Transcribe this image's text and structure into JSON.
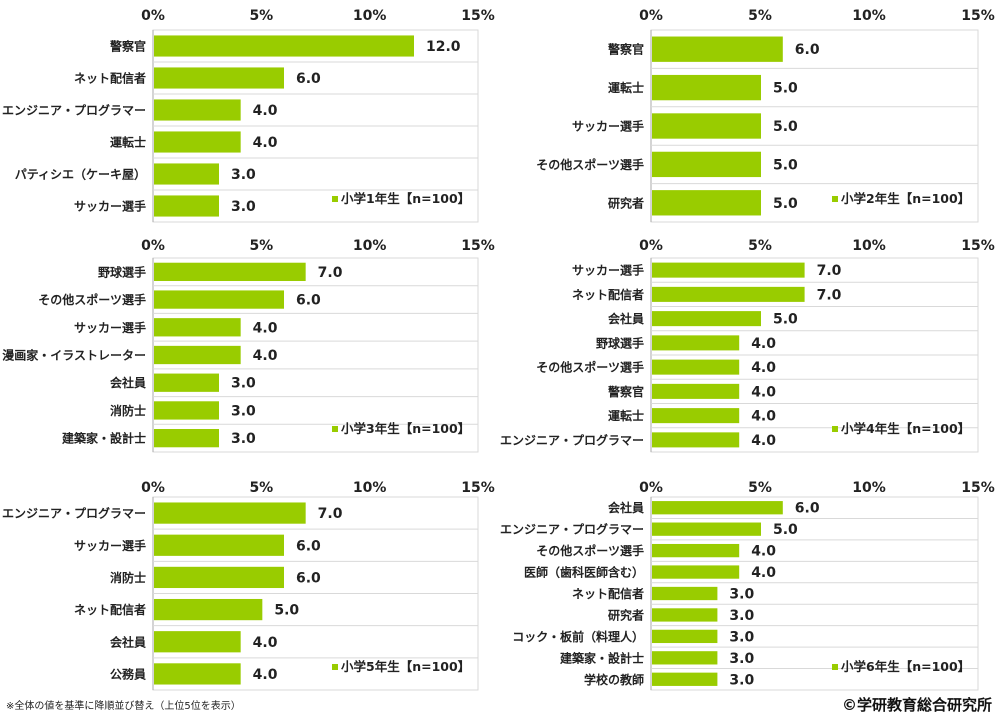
{
  "colors": {
    "bar": "#99cc00",
    "grid": "#d9d9d9",
    "text": "#222222"
  },
  "chart_data": [
    {
      "type": "bar",
      "orientation": "horizontal",
      "legend": "小学1年生【n=100】",
      "legend_position": "bottom-right",
      "xlim": [
        0,
        15
      ],
      "ticks": [
        "0%",
        "5%",
        "10%",
        "15%"
      ],
      "categories": [
        "警察官",
        "ネット配信者",
        "エンジニア・プログラマー",
        "運転士",
        "パティシエ（ケーキ屋）",
        "サッカー選手"
      ],
      "values": [
        12.0,
        6.0,
        4.0,
        4.0,
        3.0,
        3.0
      ],
      "labels": [
        "12.0",
        "6.0",
        "4.0",
        "4.0",
        "3.0",
        "3.0"
      ]
    },
    {
      "type": "bar",
      "orientation": "horizontal",
      "legend": "小学2年生【n=100】",
      "legend_position": "bottom-right",
      "xlim": [
        0,
        15
      ],
      "ticks": [
        "0%",
        "5%",
        "10%",
        "15%"
      ],
      "categories": [
        "警察官",
        "運転士",
        "サッカー選手",
        "その他スポーツ選手",
        "研究者"
      ],
      "values": [
        6.0,
        5.0,
        5.0,
        5.0,
        5.0
      ],
      "labels": [
        "6.0",
        "5.0",
        "5.0",
        "5.0",
        "5.0"
      ]
    },
    {
      "type": "bar",
      "orientation": "horizontal",
      "legend": "小学3年生【n=100】",
      "legend_position": "bottom-right",
      "xlim": [
        0,
        15
      ],
      "ticks": [
        "0%",
        "5%",
        "10%",
        "15%"
      ],
      "categories": [
        "野球選手",
        "その他スポーツ選手",
        "サッカー選手",
        "漫画家・イラストレーター",
        "会社員",
        "消防士",
        "建築家・設計士"
      ],
      "values": [
        7.0,
        6.0,
        4.0,
        4.0,
        3.0,
        3.0,
        3.0
      ],
      "labels": [
        "7.0",
        "6.0",
        "4.0",
        "4.0",
        "3.0",
        "3.0",
        "3.0"
      ]
    },
    {
      "type": "bar",
      "orientation": "horizontal",
      "legend": "小学4年生【n=100】",
      "legend_position": "bottom-right",
      "xlim": [
        0,
        15
      ],
      "ticks": [
        "0%",
        "5%",
        "10%",
        "15%"
      ],
      "categories": [
        "サッカー選手",
        "ネット配信者",
        "会社員",
        "野球選手",
        "その他スポーツ選手",
        "警察官",
        "運転士",
        "エンジニア・プログラマー"
      ],
      "values": [
        7.0,
        7.0,
        5.0,
        4.0,
        4.0,
        4.0,
        4.0,
        4.0
      ],
      "labels": [
        "7.0",
        "7.0",
        "5.0",
        "4.0",
        "4.0",
        "4.0",
        "4.0",
        "4.0"
      ]
    },
    {
      "type": "bar",
      "orientation": "horizontal",
      "legend": "小学5年生【n=100】",
      "legend_position": "bottom-right",
      "xlim": [
        0,
        15
      ],
      "ticks": [
        "0%",
        "5%",
        "10%",
        "15%"
      ],
      "categories": [
        "エンジニア・プログラマー",
        "サッカー選手",
        "消防士",
        "ネット配信者",
        "会社員",
        "公務員"
      ],
      "values": [
        7.0,
        6.0,
        6.0,
        5.0,
        4.0,
        4.0
      ],
      "labels": [
        "7.0",
        "6.0",
        "6.0",
        "5.0",
        "4.0",
        "4.0"
      ]
    },
    {
      "type": "bar",
      "orientation": "horizontal",
      "legend": "小学6年生【n=100】",
      "legend_position": "bottom-right",
      "xlim": [
        0,
        15
      ],
      "ticks": [
        "0%",
        "5%",
        "10%",
        "15%"
      ],
      "categories": [
        "会社員",
        "エンジニア・プログラマー",
        "その他スポーツ選手",
        "医師（歯科医師含む）",
        "ネット配信者",
        "研究者",
        "コック・板前（料理人）",
        "建築家・設計士",
        "学校の教師"
      ],
      "values": [
        6.0,
        5.0,
        4.0,
        4.0,
        3.0,
        3.0,
        3.0,
        3.0,
        3.0
      ],
      "labels": [
        "6.0",
        "5.0",
        "4.0",
        "4.0",
        "3.0",
        "3.0",
        "3.0",
        "3.0",
        "3.0"
      ]
    }
  ],
  "footnote": "※全体の値を基準に降順並び替え（上位5位を表示）",
  "copyright": "©学研教育総合研究所"
}
